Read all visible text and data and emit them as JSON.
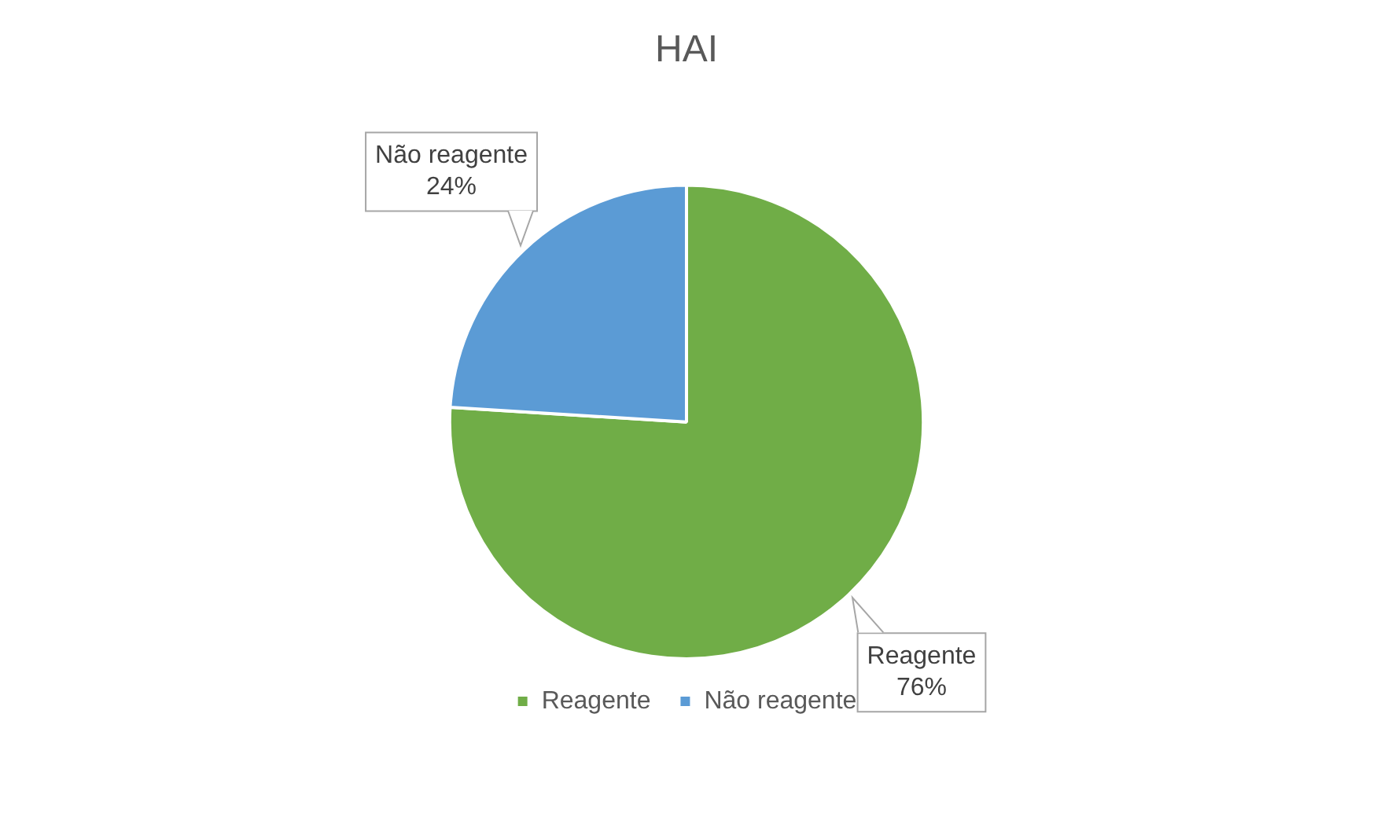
{
  "chart_data": {
    "type": "pie",
    "title": "HAI",
    "categories": [
      "Reagente",
      "Não reagente"
    ],
    "values": [
      76,
      24
    ],
    "colors": [
      "#70ad47",
      "#5b9bd5"
    ],
    "value_labels": [
      "76%",
      "24%"
    ],
    "legend": "bottom"
  }
}
